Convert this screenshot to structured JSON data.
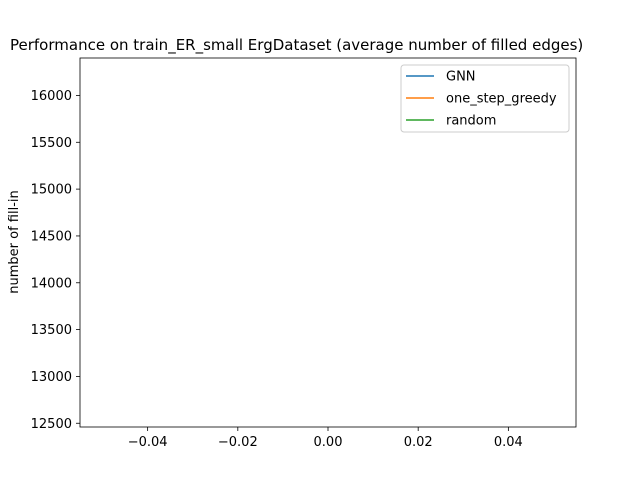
{
  "chart_data": {
    "type": "line",
    "title": "Performance on train_ER_small ErgDataset (average number of filled edges)",
    "xlabel": "",
    "ylabel": "number of fill-in",
    "xlim": [
      -0.055,
      0.055
    ],
    "ylim": [
      12460,
      16400
    ],
    "xticks": [
      -0.04,
      -0.02,
      0.0,
      0.02,
      0.04
    ],
    "xtick_labels": [
      "−0.04",
      "−0.02",
      "0.00",
      "0.02",
      "0.04"
    ],
    "yticks": [
      12500,
      13000,
      13500,
      14000,
      14500,
      15000,
      15500,
      16000
    ],
    "ytick_labels": [
      "12500",
      "13000",
      "13500",
      "14000",
      "14500",
      "15000",
      "15500",
      "16000"
    ],
    "grid": false,
    "legend_position": "top-right",
    "series": [
      {
        "name": "GNN",
        "color": "#1f77b4",
        "x": [],
        "y": []
      },
      {
        "name": "one_step_greedy",
        "color": "#ff7f0e",
        "x": [],
        "y": []
      },
      {
        "name": "random",
        "color": "#2ca02c",
        "x": [],
        "y": []
      }
    ]
  }
}
